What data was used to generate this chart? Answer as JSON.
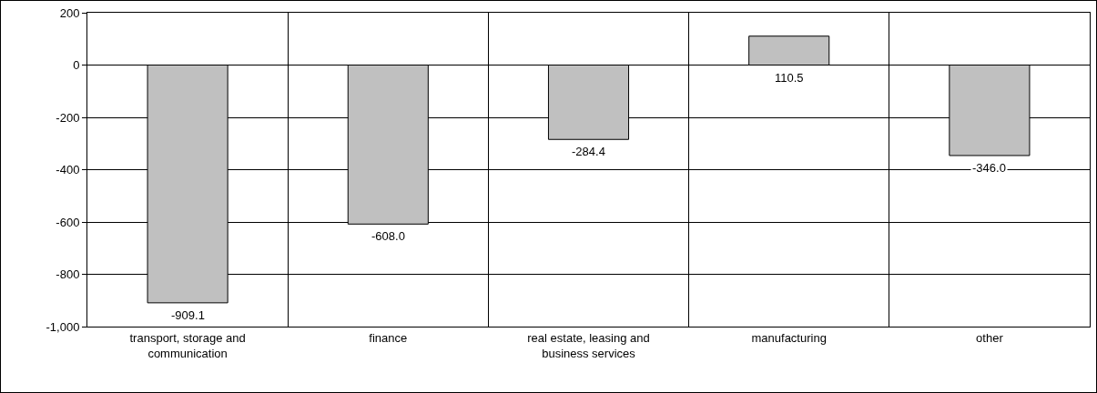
{
  "chart_data": {
    "type": "bar",
    "categories": [
      "transport, storage and communication",
      "finance",
      "real estate, leasing and business services",
      "manufacturing",
      "other"
    ],
    "values": [
      -909.1,
      -608.0,
      -284.4,
      110.5,
      -346.0
    ],
    "value_labels": [
      "-909.1",
      "-608.0",
      "-284.4",
      "110.5",
      "-346.0"
    ],
    "color": "#c0c0c0",
    "ylim": [
      -1000,
      200
    ],
    "yticks": [
      {
        "value": -1000,
        "label": "-1,000"
      },
      -800,
      -600,
      -400,
      -200,
      0,
      200
    ],
    "grid": true
  }
}
